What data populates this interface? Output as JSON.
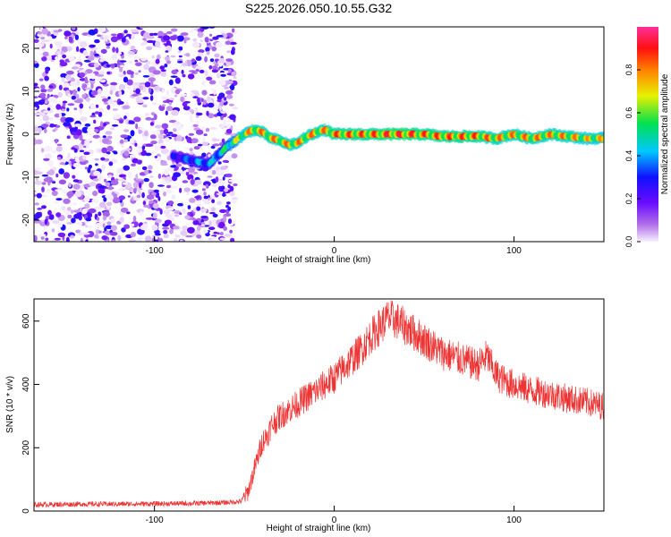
{
  "title": "S225.2026.050.10.55.G32",
  "chart_data": [
    {
      "type": "heatmap",
      "panel": "spectrogram",
      "xlabel": "Height of straight line (km)",
      "ylabel": "Frequency (Hz)",
      "xlim": [
        -167,
        150
      ],
      "ylim": [
        -25,
        25
      ],
      "xticks": [
        -100,
        0,
        100
      ],
      "yticks": [
        -20,
        -10,
        0,
        10,
        20
      ],
      "colorbar": {
        "label": "Normalized spectral amplitude",
        "range": [
          0,
          1
        ],
        "ticks": [
          0.0,
          0.2,
          0.4,
          0.6,
          0.8
        ],
        "colormap": "rainbow (purple to red, pink at top)",
        "colors": [
          "#e0c8f0",
          "#8a2be2",
          "#2020ff",
          "#00c8ff",
          "#00e040",
          "#f0f000",
          "#ff8000",
          "#ff2020",
          "#ff3090"
        ]
      },
      "noise_region": {
        "x": [
          -167,
          -55
        ],
        "y": [
          -25,
          25
        ],
        "amplitude": [
          0.0,
          0.3
        ]
      },
      "trace": {
        "x": [
          -90,
          -80,
          -75,
          -70,
          -65,
          -60,
          -55,
          -50,
          -45,
          -40,
          -35,
          -30,
          -25,
          -20,
          -15,
          -10,
          -5,
          0,
          10,
          20,
          30,
          40,
          50,
          60,
          70,
          80,
          90,
          100,
          110,
          120,
          130,
          140,
          150
        ],
        "frequency": [
          -5,
          -6,
          -6.5,
          -7,
          -5,
          -3,
          -1.5,
          0,
          1,
          0.5,
          -1,
          -1.5,
          -2.5,
          -2,
          -0.5,
          0.5,
          1,
          0,
          0,
          0,
          0,
          0,
          0,
          -0.5,
          -0.5,
          -0.5,
          -1,
          0,
          -1,
          0,
          -0.5,
          -1,
          -1
        ],
        "amplitude": [
          0.3,
          0.4,
          0.45,
          0.45,
          0.5,
          0.6,
          0.7,
          0.8,
          0.85,
          0.85,
          0.85,
          0.85,
          0.85,
          0.85,
          0.85,
          0.85,
          0.85,
          0.9,
          0.9,
          0.9,
          0.95,
          0.95,
          0.9,
          0.9,
          0.9,
          0.9,
          0.85,
          0.85,
          0.85,
          0.85,
          0.85,
          0.8,
          0.8
        ]
      }
    },
    {
      "type": "line",
      "panel": "snr",
      "xlabel": "Height of straight line (km)",
      "ylabel": "SNR (10 * v/v)",
      "xlim": [
        -167,
        150
      ],
      "ylim": [
        0,
        670
      ],
      "xticks": [
        -100,
        0,
        100
      ],
      "yticks": [
        0,
        200,
        400,
        600
      ],
      "series": [
        {
          "name": "SNR",
          "color": "#ee3333",
          "x": [
            -167,
            -140,
            -120,
            -100,
            -80,
            -60,
            -52,
            -48,
            -45,
            -42,
            -40,
            -37,
            -35,
            -30,
            -25,
            -20,
            -15,
            -10,
            -5,
            0,
            5,
            10,
            15,
            20,
            25,
            30,
            35,
            40,
            45,
            50,
            55,
            60,
            65,
            70,
            75,
            80,
            85,
            90,
            95,
            100,
            110,
            120,
            130,
            140,
            150
          ],
          "y": [
            20,
            22,
            22,
            23,
            24,
            27,
            30,
            60,
            120,
            180,
            220,
            240,
            270,
            300,
            320,
            340,
            360,
            380,
            400,
            420,
            450,
            480,
            510,
            550,
            580,
            610,
            600,
            580,
            560,
            540,
            520,
            500,
            490,
            480,
            470,
            460,
            490,
            430,
            410,
            400,
            380,
            370,
            355,
            345,
            330
          ],
          "noise": 25
        }
      ]
    }
  ]
}
